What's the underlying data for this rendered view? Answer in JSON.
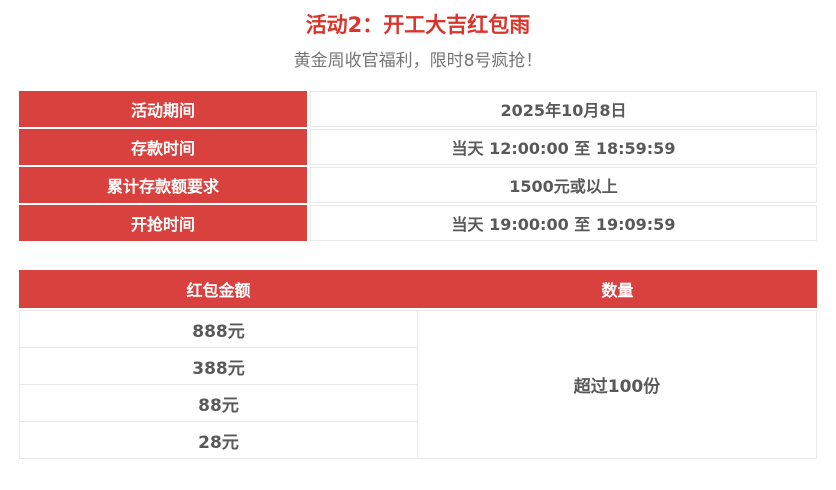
{
  "page": {
    "title": "活动2：开工大吉红包雨",
    "subtitle": "黄金周收官福利，限时8号疯抢！"
  },
  "colors": {
    "title_red": "#d9352c",
    "cell_red": "#d8413d",
    "value_text": "#595959",
    "subtitle_text": "#757575",
    "border": "#e9e9e9"
  },
  "info_table": {
    "rows": [
      {
        "label": "活动期间",
        "value": "2025年10月8日"
      },
      {
        "label": "存款时间",
        "value": "当天 12:00:00 至 18:59:59"
      },
      {
        "label": "累计存款额要求",
        "value": "1500元或以上"
      },
      {
        "label": "开抢时间",
        "value": "当天 19:00:00 至 19:09:59"
      }
    ]
  },
  "prize_table": {
    "headers": {
      "amount": "红包金额",
      "quantity": "数量"
    },
    "rows": [
      {
        "amount": "888元"
      },
      {
        "amount": "388元"
      },
      {
        "amount": "88元"
      },
      {
        "amount": "28元"
      }
    ],
    "quantity_value": "超过100份"
  }
}
